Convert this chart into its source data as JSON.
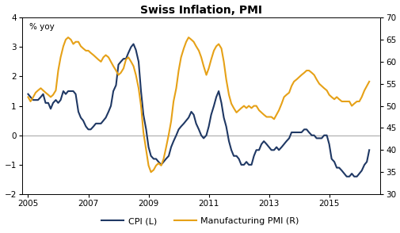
{
  "title": "Swiss Inflation, PMI",
  "ylabel_inside": "% yoy",
  "left_ylim": [
    -2,
    4
  ],
  "right_ylim": [
    30,
    70
  ],
  "left_yticks": [
    -2,
    -1,
    0,
    1,
    2,
    3,
    4
  ],
  "right_yticks": [
    30,
    35,
    40,
    45,
    50,
    55,
    60,
    65,
    70
  ],
  "background_color": "#ffffff",
  "plot_bg_color": "#ffffff",
  "line_color_cpi": "#1f3864",
  "line_color_pmi": "#e6a117",
  "legend_cpi": "CPI (L)",
  "legend_pmi": "Manufacturing PMI (R)",
  "xticks": [
    2005,
    2007,
    2009,
    2011,
    2013,
    2015
  ],
  "xlim": [
    2004.8,
    2016.7
  ],
  "cpi_data": [
    [
      2005.0,
      1.4
    ],
    [
      2005.08,
      1.3
    ],
    [
      2005.17,
      1.2
    ],
    [
      2005.25,
      1.2
    ],
    [
      2005.33,
      1.2
    ],
    [
      2005.42,
      1.3
    ],
    [
      2005.5,
      1.4
    ],
    [
      2005.58,
      1.1
    ],
    [
      2005.67,
      1.1
    ],
    [
      2005.75,
      0.9
    ],
    [
      2005.83,
      1.1
    ],
    [
      2005.92,
      1.2
    ],
    [
      2006.0,
      1.1
    ],
    [
      2006.08,
      1.2
    ],
    [
      2006.17,
      1.5
    ],
    [
      2006.25,
      1.4
    ],
    [
      2006.33,
      1.5
    ],
    [
      2006.42,
      1.5
    ],
    [
      2006.5,
      1.5
    ],
    [
      2006.58,
      1.4
    ],
    [
      2006.67,
      0.8
    ],
    [
      2006.75,
      0.6
    ],
    [
      2006.83,
      0.5
    ],
    [
      2006.92,
      0.3
    ],
    [
      2007.0,
      0.2
    ],
    [
      2007.08,
      0.2
    ],
    [
      2007.17,
      0.3
    ],
    [
      2007.25,
      0.4
    ],
    [
      2007.33,
      0.4
    ],
    [
      2007.42,
      0.4
    ],
    [
      2007.5,
      0.5
    ],
    [
      2007.58,
      0.6
    ],
    [
      2007.67,
      0.8
    ],
    [
      2007.75,
      1.0
    ],
    [
      2007.83,
      1.5
    ],
    [
      2007.92,
      1.7
    ],
    [
      2008.0,
      2.4
    ],
    [
      2008.08,
      2.5
    ],
    [
      2008.17,
      2.6
    ],
    [
      2008.25,
      2.6
    ],
    [
      2008.33,
      2.8
    ],
    [
      2008.42,
      3.0
    ],
    [
      2008.5,
      3.1
    ],
    [
      2008.58,
      2.9
    ],
    [
      2008.67,
      2.5
    ],
    [
      2008.75,
      1.5
    ],
    [
      2008.83,
      0.7
    ],
    [
      2008.92,
      0.2
    ],
    [
      2009.0,
      -0.4
    ],
    [
      2009.08,
      -0.7
    ],
    [
      2009.17,
      -0.8
    ],
    [
      2009.25,
      -0.8
    ],
    [
      2009.33,
      -0.9
    ],
    [
      2009.42,
      -1.0
    ],
    [
      2009.5,
      -0.9
    ],
    [
      2009.58,
      -0.8
    ],
    [
      2009.67,
      -0.7
    ],
    [
      2009.75,
      -0.4
    ],
    [
      2009.83,
      -0.2
    ],
    [
      2009.92,
      0.0
    ],
    [
      2010.0,
      0.2
    ],
    [
      2010.08,
      0.3
    ],
    [
      2010.17,
      0.4
    ],
    [
      2010.25,
      0.5
    ],
    [
      2010.33,
      0.6
    ],
    [
      2010.42,
      0.8
    ],
    [
      2010.5,
      0.7
    ],
    [
      2010.58,
      0.4
    ],
    [
      2010.67,
      0.2
    ],
    [
      2010.75,
      0.0
    ],
    [
      2010.83,
      -0.1
    ],
    [
      2010.92,
      0.0
    ],
    [
      2011.0,
      0.3
    ],
    [
      2011.08,
      0.7
    ],
    [
      2011.17,
      1.0
    ],
    [
      2011.25,
      1.3
    ],
    [
      2011.33,
      1.5
    ],
    [
      2011.42,
      1.1
    ],
    [
      2011.5,
      0.6
    ],
    [
      2011.58,
      0.3
    ],
    [
      2011.67,
      -0.2
    ],
    [
      2011.75,
      -0.5
    ],
    [
      2011.83,
      -0.7
    ],
    [
      2011.92,
      -0.7
    ],
    [
      2012.0,
      -0.8
    ],
    [
      2012.08,
      -1.0
    ],
    [
      2012.17,
      -1.0
    ],
    [
      2012.25,
      -0.9
    ],
    [
      2012.33,
      -1.0
    ],
    [
      2012.42,
      -1.0
    ],
    [
      2012.5,
      -0.7
    ],
    [
      2012.58,
      -0.5
    ],
    [
      2012.67,
      -0.5
    ],
    [
      2012.75,
      -0.3
    ],
    [
      2012.83,
      -0.2
    ],
    [
      2012.92,
      -0.3
    ],
    [
      2013.0,
      -0.4
    ],
    [
      2013.08,
      -0.5
    ],
    [
      2013.17,
      -0.5
    ],
    [
      2013.25,
      -0.4
    ],
    [
      2013.33,
      -0.5
    ],
    [
      2013.42,
      -0.4
    ],
    [
      2013.5,
      -0.3
    ],
    [
      2013.58,
      -0.2
    ],
    [
      2013.67,
      -0.1
    ],
    [
      2013.75,
      0.1
    ],
    [
      2013.83,
      0.1
    ],
    [
      2013.92,
      0.1
    ],
    [
      2014.0,
      0.1
    ],
    [
      2014.08,
      0.1
    ],
    [
      2014.17,
      0.2
    ],
    [
      2014.25,
      0.2
    ],
    [
      2014.33,
      0.1
    ],
    [
      2014.42,
      0.0
    ],
    [
      2014.5,
      0.0
    ],
    [
      2014.58,
      -0.1
    ],
    [
      2014.67,
      -0.1
    ],
    [
      2014.75,
      -0.1
    ],
    [
      2014.83,
      0.0
    ],
    [
      2014.92,
      0.0
    ],
    [
      2015.0,
      -0.3
    ],
    [
      2015.08,
      -0.8
    ],
    [
      2015.17,
      -0.9
    ],
    [
      2015.25,
      -1.1
    ],
    [
      2015.33,
      -1.1
    ],
    [
      2015.42,
      -1.2
    ],
    [
      2015.5,
      -1.3
    ],
    [
      2015.58,
      -1.4
    ],
    [
      2015.67,
      -1.4
    ],
    [
      2015.75,
      -1.3
    ],
    [
      2015.83,
      -1.4
    ],
    [
      2015.92,
      -1.4
    ],
    [
      2016.0,
      -1.3
    ],
    [
      2016.08,
      -1.2
    ],
    [
      2016.17,
      -1.0
    ],
    [
      2016.25,
      -0.9
    ],
    [
      2016.33,
      -0.5
    ]
  ],
  "pmi_data": [
    [
      2005.0,
      52.0
    ],
    [
      2005.08,
      51.0
    ],
    [
      2005.17,
      52.0
    ],
    [
      2005.25,
      53.0
    ],
    [
      2005.33,
      53.5
    ],
    [
      2005.42,
      54.0
    ],
    [
      2005.5,
      53.5
    ],
    [
      2005.58,
      53.0
    ],
    [
      2005.67,
      52.5
    ],
    [
      2005.75,
      52.0
    ],
    [
      2005.83,
      52.5
    ],
    [
      2005.92,
      53.5
    ],
    [
      2006.0,
      58.0
    ],
    [
      2006.08,
      61.0
    ],
    [
      2006.17,
      63.5
    ],
    [
      2006.25,
      65.0
    ],
    [
      2006.33,
      65.5
    ],
    [
      2006.42,
      65.0
    ],
    [
      2006.5,
      64.0
    ],
    [
      2006.58,
      64.5
    ],
    [
      2006.67,
      64.5
    ],
    [
      2006.75,
      63.5
    ],
    [
      2006.83,
      63.0
    ],
    [
      2006.92,
      62.5
    ],
    [
      2007.0,
      62.5
    ],
    [
      2007.08,
      62.0
    ],
    [
      2007.17,
      61.5
    ],
    [
      2007.25,
      61.0
    ],
    [
      2007.33,
      60.5
    ],
    [
      2007.42,
      60.0
    ],
    [
      2007.5,
      61.0
    ],
    [
      2007.58,
      61.5
    ],
    [
      2007.67,
      61.0
    ],
    [
      2007.75,
      60.0
    ],
    [
      2007.83,
      59.0
    ],
    [
      2007.92,
      58.0
    ],
    [
      2008.0,
      57.0
    ],
    [
      2008.08,
      57.5
    ],
    [
      2008.17,
      58.5
    ],
    [
      2008.25,
      60.5
    ],
    [
      2008.33,
      61.0
    ],
    [
      2008.42,
      60.0
    ],
    [
      2008.5,
      59.0
    ],
    [
      2008.58,
      57.0
    ],
    [
      2008.67,
      54.0
    ],
    [
      2008.75,
      50.0
    ],
    [
      2008.83,
      44.0
    ],
    [
      2008.92,
      40.0
    ],
    [
      2009.0,
      36.5
    ],
    [
      2009.08,
      35.0
    ],
    [
      2009.17,
      35.5
    ],
    [
      2009.25,
      36.5
    ],
    [
      2009.33,
      37.0
    ],
    [
      2009.42,
      36.5
    ],
    [
      2009.5,
      38.0
    ],
    [
      2009.58,
      40.5
    ],
    [
      2009.67,
      43.5
    ],
    [
      2009.75,
      46.5
    ],
    [
      2009.83,
      51.0
    ],
    [
      2009.92,
      54.0
    ],
    [
      2010.0,
      58.0
    ],
    [
      2010.08,
      61.0
    ],
    [
      2010.17,
      63.0
    ],
    [
      2010.25,
      64.5
    ],
    [
      2010.33,
      65.5
    ],
    [
      2010.42,
      65.0
    ],
    [
      2010.5,
      64.5
    ],
    [
      2010.58,
      63.5
    ],
    [
      2010.67,
      62.5
    ],
    [
      2010.75,
      61.0
    ],
    [
      2010.83,
      59.0
    ],
    [
      2010.92,
      57.0
    ],
    [
      2011.0,
      58.5
    ],
    [
      2011.08,
      60.5
    ],
    [
      2011.17,
      62.5
    ],
    [
      2011.25,
      63.5
    ],
    [
      2011.33,
      64.0
    ],
    [
      2011.42,
      63.0
    ],
    [
      2011.5,
      60.0
    ],
    [
      2011.58,
      56.0
    ],
    [
      2011.67,
      52.5
    ],
    [
      2011.75,
      50.5
    ],
    [
      2011.83,
      49.5
    ],
    [
      2011.92,
      48.5
    ],
    [
      2012.0,
      49.0
    ],
    [
      2012.08,
      49.5
    ],
    [
      2012.17,
      50.0
    ],
    [
      2012.25,
      49.5
    ],
    [
      2012.33,
      50.0
    ],
    [
      2012.42,
      49.5
    ],
    [
      2012.5,
      50.0
    ],
    [
      2012.58,
      50.0
    ],
    [
      2012.67,
      49.0
    ],
    [
      2012.75,
      48.5
    ],
    [
      2012.83,
      48.0
    ],
    [
      2012.92,
      47.5
    ],
    [
      2013.0,
      47.5
    ],
    [
      2013.08,
      47.5
    ],
    [
      2013.17,
      47.0
    ],
    [
      2013.25,
      48.0
    ],
    [
      2013.33,
      49.0
    ],
    [
      2013.42,
      50.5
    ],
    [
      2013.5,
      52.0
    ],
    [
      2013.58,
      52.5
    ],
    [
      2013.67,
      53.0
    ],
    [
      2013.75,
      54.5
    ],
    [
      2013.83,
      55.5
    ],
    [
      2013.92,
      56.0
    ],
    [
      2014.0,
      56.5
    ],
    [
      2014.08,
      57.0
    ],
    [
      2014.17,
      57.5
    ],
    [
      2014.25,
      58.0
    ],
    [
      2014.33,
      58.0
    ],
    [
      2014.42,
      57.5
    ],
    [
      2014.5,
      57.0
    ],
    [
      2014.58,
      56.0
    ],
    [
      2014.67,
      55.0
    ],
    [
      2014.75,
      54.5
    ],
    [
      2014.83,
      54.0
    ],
    [
      2014.92,
      53.5
    ],
    [
      2015.0,
      52.5
    ],
    [
      2015.08,
      52.0
    ],
    [
      2015.17,
      51.5
    ],
    [
      2015.25,
      52.0
    ],
    [
      2015.33,
      51.5
    ],
    [
      2015.42,
      51.0
    ],
    [
      2015.5,
      51.0
    ],
    [
      2015.58,
      51.0
    ],
    [
      2015.67,
      51.0
    ],
    [
      2015.75,
      50.0
    ],
    [
      2015.83,
      50.5
    ],
    [
      2015.92,
      51.0
    ],
    [
      2016.0,
      51.0
    ],
    [
      2016.08,
      52.0
    ],
    [
      2016.17,
      53.5
    ],
    [
      2016.25,
      54.5
    ],
    [
      2016.33,
      55.5
    ]
  ]
}
